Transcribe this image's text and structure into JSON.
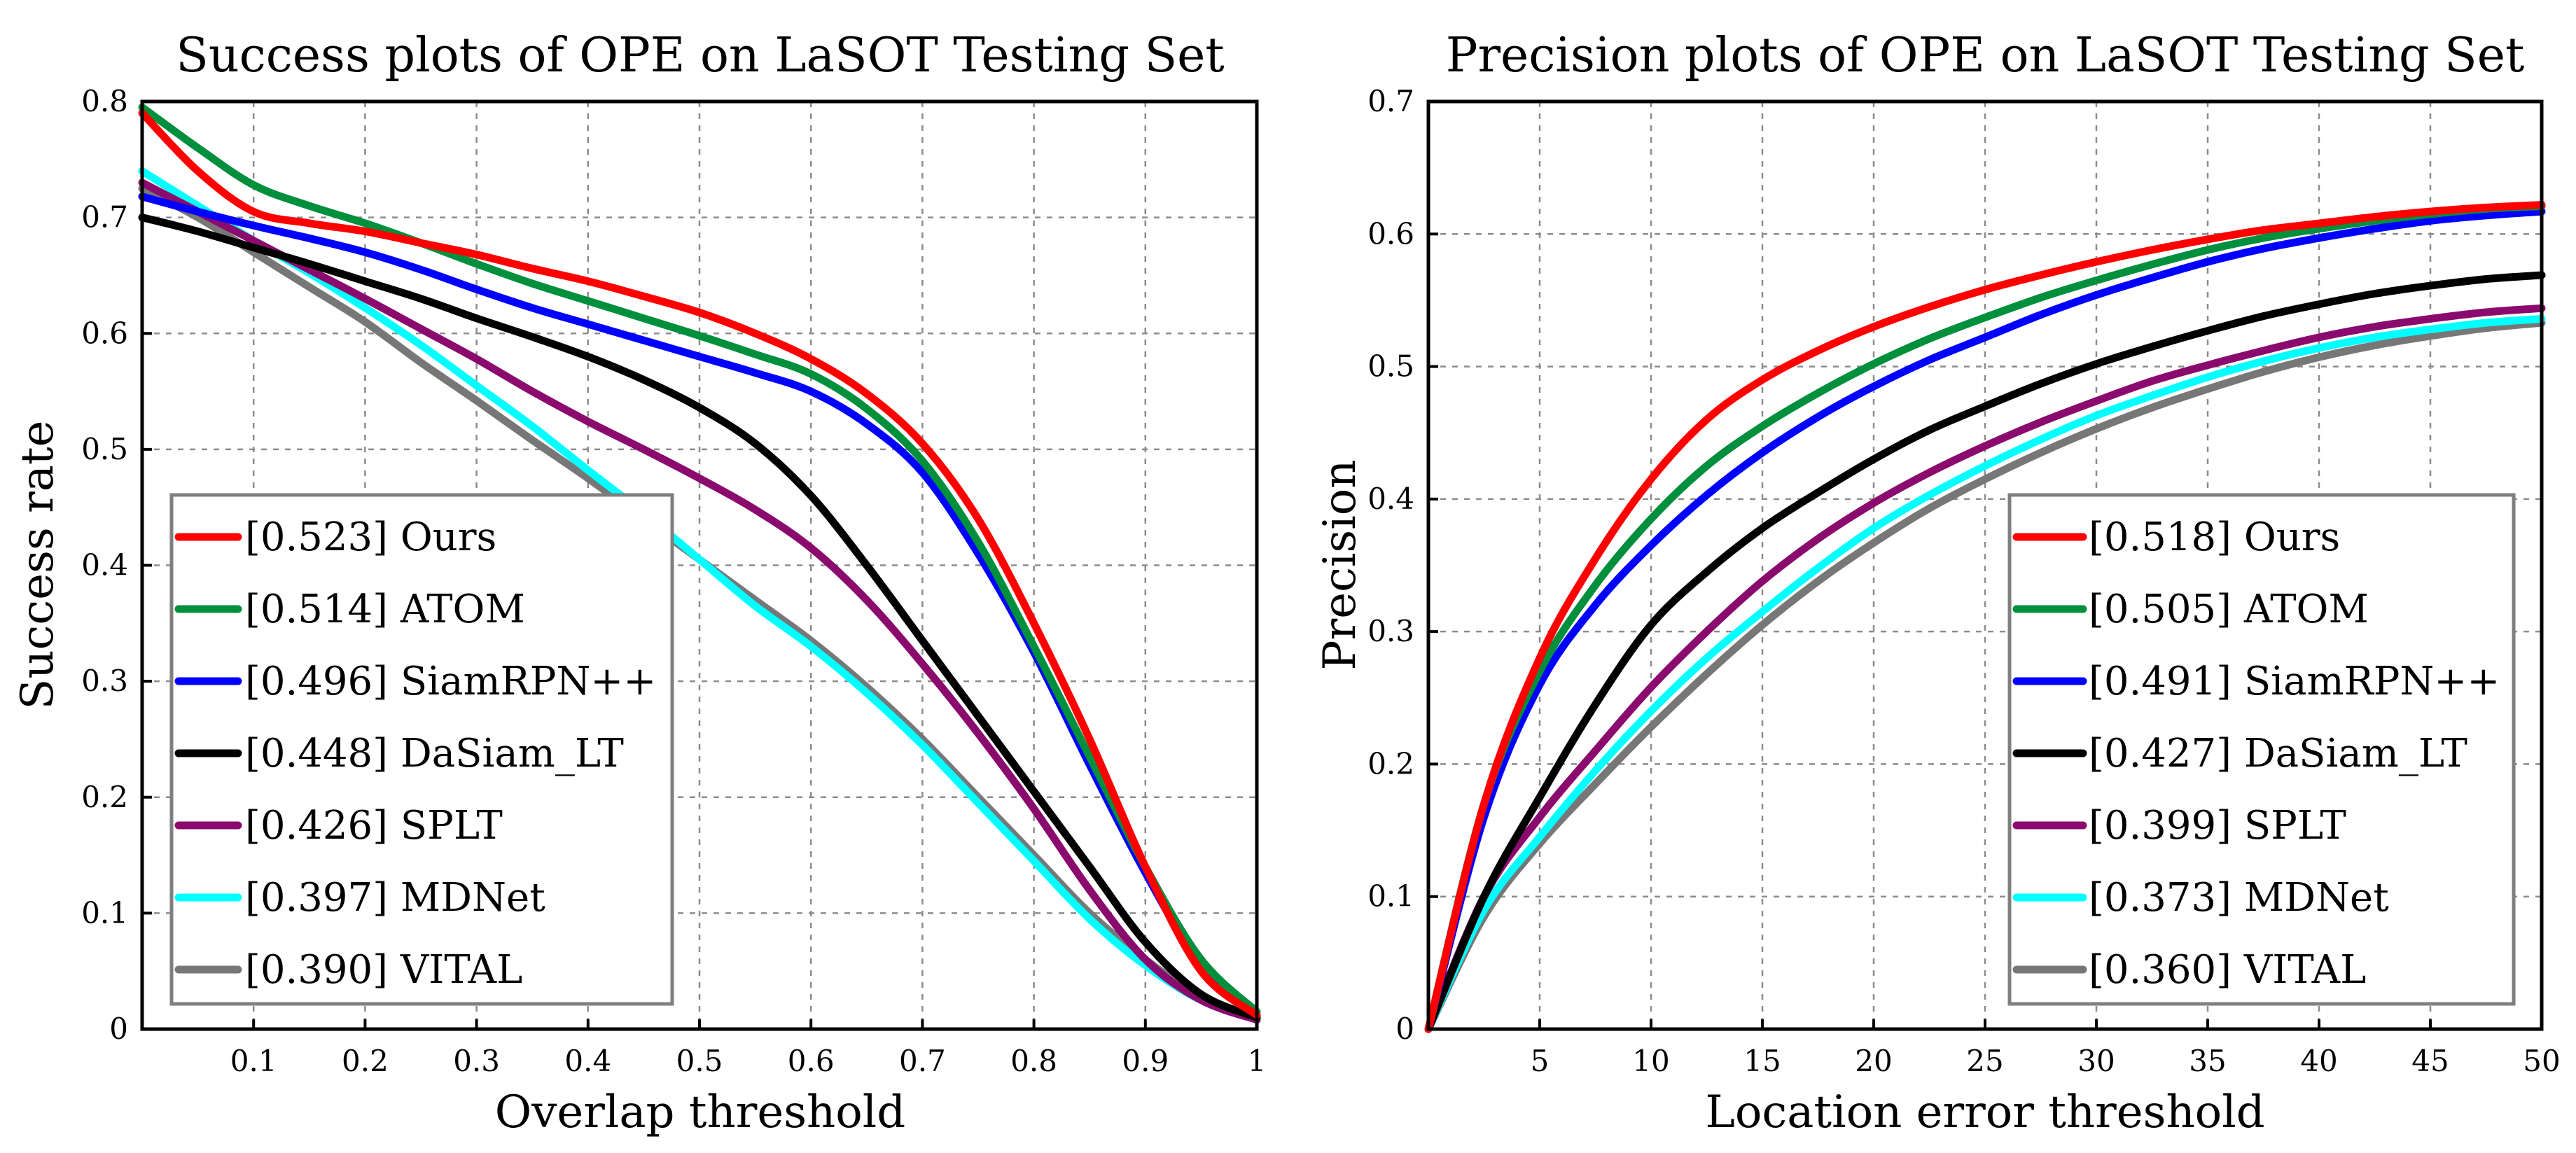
{
  "chart_data": [
    {
      "type": "line",
      "title": "Success plots of OPE on LaSOT Testing Set",
      "xlabel": "Overlap threshold",
      "ylabel": "Success rate",
      "xlim": [
        0,
        1
      ],
      "ylim": [
        0,
        0.8
      ],
      "xticks": [
        "0.1",
        "0.2",
        "0.3",
        "0.4",
        "0.5",
        "0.6",
        "0.7",
        "0.8",
        "0.9",
        "1"
      ],
      "xtick_values": [
        0.1,
        0.2,
        0.3,
        0.4,
        0.5,
        0.6,
        0.7,
        0.8,
        0.9,
        1.0
      ],
      "yticks": [
        "0",
        "0.1",
        "0.2",
        "0.3",
        "0.4",
        "0.5",
        "0.6",
        "0.7",
        "0.8"
      ],
      "ytick_values": [
        0,
        0.1,
        0.2,
        0.3,
        0.4,
        0.5,
        0.6,
        0.7,
        0.8
      ],
      "grid": true,
      "legend_position": "bottom-left",
      "x": [
        0,
        0.05,
        0.1,
        0.15,
        0.2,
        0.25,
        0.3,
        0.35,
        0.4,
        0.45,
        0.5,
        0.55,
        0.6,
        0.65,
        0.7,
        0.75,
        0.8,
        0.85,
        0.9,
        0.95,
        1.0
      ],
      "series": [
        {
          "name": "Ours",
          "score": "0.523",
          "legend": "[0.523] Ours",
          "color": "#ff0000",
          "values": [
            0.79,
            0.74,
            0.705,
            0.695,
            0.688,
            0.678,
            0.668,
            0.656,
            0.645,
            0.632,
            0.618,
            0.6,
            0.578,
            0.548,
            0.505,
            0.44,
            0.35,
            0.25,
            0.14,
            0.05,
            0.012
          ]
        },
        {
          "name": "ATOM",
          "score": "0.514",
          "legend": "[0.514] ATOM",
          "color": "#008f3c",
          "values": [
            0.795,
            0.76,
            0.728,
            0.71,
            0.695,
            0.678,
            0.66,
            0.643,
            0.628,
            0.613,
            0.598,
            0.582,
            0.565,
            0.535,
            0.49,
            0.42,
            0.33,
            0.235,
            0.14,
            0.06,
            0.015
          ]
        },
        {
          "name": "SiamRPN++",
          "score": "0.496",
          "legend": "[0.496] SiamRPN++",
          "color": "#0000ff",
          "values": [
            0.718,
            0.705,
            0.693,
            0.682,
            0.67,
            0.655,
            0.638,
            0.622,
            0.608,
            0.594,
            0.58,
            0.566,
            0.55,
            0.522,
            0.48,
            0.41,
            0.325,
            0.228,
            0.135,
            0.055,
            0.012
          ]
        },
        {
          "name": "DaSiam_LT",
          "score": "0.448",
          "legend": "[0.448] DaSiam_LT",
          "color": "#000000",
          "values": [
            0.7,
            0.688,
            0.674,
            0.66,
            0.645,
            0.63,
            0.613,
            0.597,
            0.58,
            0.56,
            0.536,
            0.505,
            0.46,
            0.4,
            0.335,
            0.27,
            0.205,
            0.14,
            0.075,
            0.03,
            0.01
          ]
        },
        {
          "name": "SPLT",
          "score": "0.426",
          "legend": "[0.426] SPLT",
          "color": "#8b0a6e",
          "values": [
            0.73,
            0.705,
            0.68,
            0.655,
            0.63,
            0.604,
            0.578,
            0.55,
            0.524,
            0.5,
            0.475,
            0.448,
            0.415,
            0.37,
            0.315,
            0.255,
            0.19,
            0.12,
            0.06,
            0.025,
            0.008
          ]
        },
        {
          "name": "MDNet",
          "score": "0.397",
          "legend": "[0.397] MDNet",
          "color": "#00ffff",
          "values": [
            0.74,
            0.71,
            0.68,
            0.652,
            0.622,
            0.59,
            0.555,
            0.52,
            0.482,
            0.445,
            0.405,
            0.365,
            0.33,
            0.29,
            0.245,
            0.195,
            0.145,
            0.095,
            0.055,
            0.025,
            0.01
          ]
        },
        {
          "name": "VITAL",
          "score": "0.390",
          "legend": "[0.390] VITAL",
          "color": "#777777",
          "values": [
            0.725,
            0.7,
            0.67,
            0.64,
            0.61,
            0.575,
            0.542,
            0.508,
            0.475,
            0.44,
            0.405,
            0.37,
            0.335,
            0.295,
            0.25,
            0.2,
            0.15,
            0.1,
            0.06,
            0.028,
            0.01
          ]
        }
      ]
    },
    {
      "type": "line",
      "title": "Precision plots of OPE on LaSOT Testing Set",
      "xlabel": "Location error threshold",
      "ylabel": "Precision",
      "xlim": [
        0,
        50
      ],
      "ylim": [
        0,
        0.7
      ],
      "xticks": [
        "5",
        "10",
        "15",
        "20",
        "25",
        "30",
        "35",
        "40",
        "45",
        "50"
      ],
      "xtick_values": [
        5,
        10,
        15,
        20,
        25,
        30,
        35,
        40,
        45,
        50
      ],
      "yticks": [
        "0",
        "0.1",
        "0.2",
        "0.3",
        "0.4",
        "0.5",
        "0.6",
        "0.7"
      ],
      "ytick_values": [
        0,
        0.1,
        0.2,
        0.3,
        0.4,
        0.5,
        0.6,
        0.7
      ],
      "grid": true,
      "legend_position": "bottom-right",
      "x": [
        0,
        2.5,
        5,
        7.5,
        10,
        12.5,
        15,
        17.5,
        20,
        22.5,
        25,
        27.5,
        30,
        32.5,
        35,
        37.5,
        40,
        42.5,
        45,
        47.5,
        50
      ],
      "series": [
        {
          "name": "Ours",
          "score": "0.518",
          "legend": "[0.518] Ours",
          "color": "#ff0000",
          "values": [
            0.0,
            0.17,
            0.28,
            0.355,
            0.415,
            0.46,
            0.49,
            0.512,
            0.53,
            0.545,
            0.558,
            0.569,
            0.579,
            0.588,
            0.596,
            0.603,
            0.608,
            0.613,
            0.617,
            0.62,
            0.622
          ]
        },
        {
          "name": "ATOM",
          "score": "0.505",
          "legend": "[0.505] ATOM",
          "color": "#008f3c",
          "values": [
            0.0,
            0.17,
            0.27,
            0.335,
            0.385,
            0.425,
            0.455,
            0.48,
            0.502,
            0.521,
            0.537,
            0.552,
            0.565,
            0.577,
            0.588,
            0.597,
            0.604,
            0.61,
            0.615,
            0.619,
            0.621
          ]
        },
        {
          "name": "SiamRPN++",
          "score": "0.491",
          "legend": "[0.491] SiamRPN++",
          "color": "#0000ff",
          "values": [
            0.0,
            0.16,
            0.26,
            0.32,
            0.365,
            0.403,
            0.435,
            0.462,
            0.485,
            0.505,
            0.522,
            0.539,
            0.554,
            0.567,
            0.579,
            0.589,
            0.597,
            0.604,
            0.61,
            0.614,
            0.617
          ]
        },
        {
          "name": "DaSiam_LT",
          "score": "0.427",
          "legend": "[0.427] DaSiam_LT",
          "color": "#000000",
          "values": [
            0.0,
            0.1,
            0.175,
            0.245,
            0.305,
            0.345,
            0.378,
            0.405,
            0.43,
            0.452,
            0.47,
            0.487,
            0.502,
            0.515,
            0.527,
            0.538,
            0.547,
            0.555,
            0.561,
            0.566,
            0.569
          ]
        },
        {
          "name": "SPLT",
          "score": "0.399",
          "legend": "[0.399] SPLT",
          "color": "#8b0a6e",
          "values": [
            0.0,
            0.1,
            0.16,
            0.21,
            0.258,
            0.3,
            0.338,
            0.37,
            0.397,
            0.42,
            0.44,
            0.458,
            0.474,
            0.489,
            0.501,
            0.512,
            0.522,
            0.53,
            0.536,
            0.541,
            0.544
          ]
        },
        {
          "name": "MDNet",
          "score": "0.373",
          "legend": "[0.373] MDNet",
          "color": "#00ffff",
          "values": [
            0.0,
            0.09,
            0.145,
            0.195,
            0.24,
            0.28,
            0.315,
            0.348,
            0.378,
            0.403,
            0.425,
            0.445,
            0.463,
            0.478,
            0.492,
            0.504,
            0.514,
            0.522,
            0.528,
            0.533,
            0.536
          ]
        },
        {
          "name": "VITAL",
          "score": "0.360",
          "legend": "[0.360] VITAL",
          "color": "#777777",
          "values": [
            0.0,
            0.085,
            0.14,
            0.185,
            0.228,
            0.268,
            0.305,
            0.338,
            0.367,
            0.393,
            0.415,
            0.435,
            0.453,
            0.469,
            0.483,
            0.496,
            0.507,
            0.516,
            0.523,
            0.529,
            0.533
          ]
        }
      ]
    }
  ]
}
